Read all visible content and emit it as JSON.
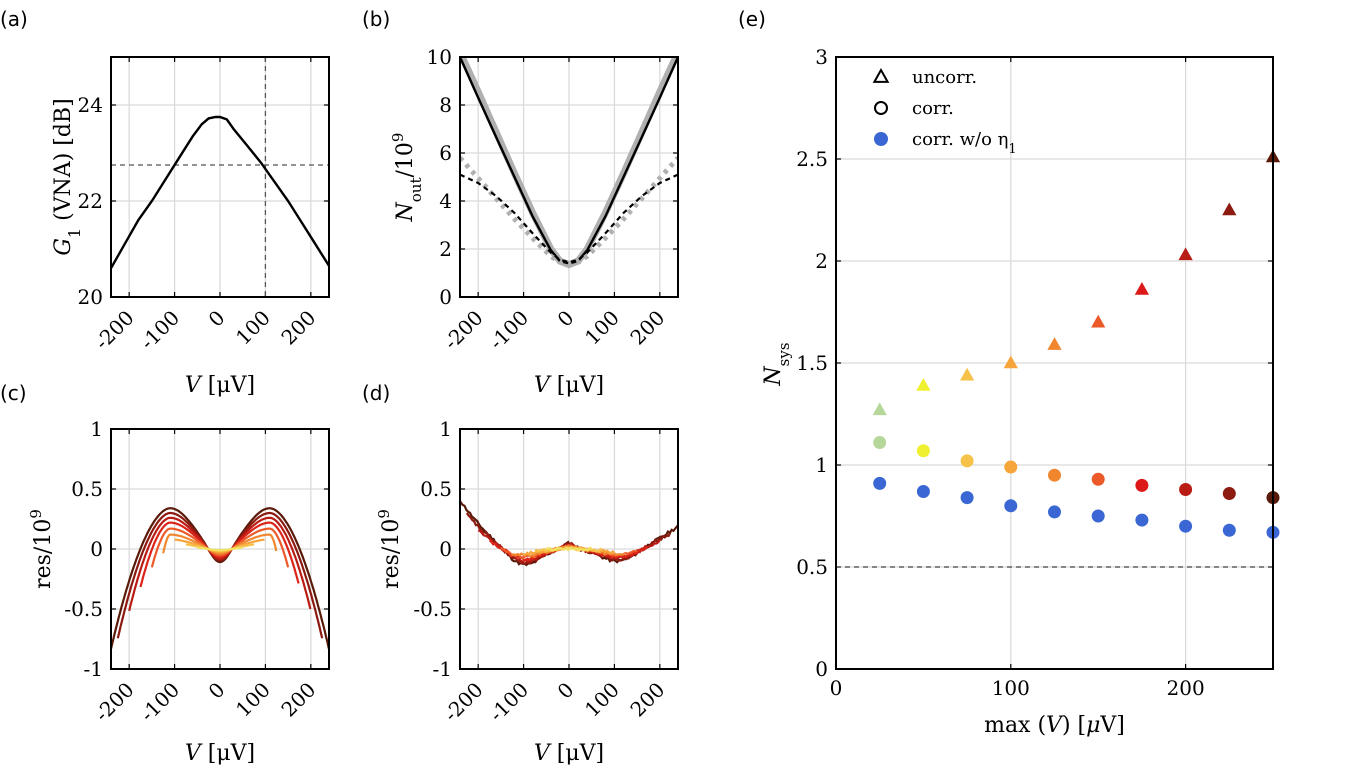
{
  "chart_data": [
    {
      "panel": "(a)",
      "type": "line",
      "xlabel": {
        "var": "V",
        "unit": "[μV]"
      },
      "ylabel": {
        "var": "G",
        "sub": "1",
        "rest": "(VNA) [dB]"
      },
      "xlim": [
        -240,
        240
      ],
      "ylim": [
        20,
        25
      ],
      "xticks": [
        -200,
        -100,
        0,
        100,
        200
      ],
      "yticks": [
        20,
        22,
        24
      ],
      "grid": true,
      "refline_y": 22.75,
      "refline_x": 100,
      "series": [
        {
          "x": [
            -240,
            -210,
            -180,
            -150,
            -120,
            -90,
            -60,
            -40,
            -25,
            -10,
            0,
            15,
            30,
            60,
            90,
            120,
            150,
            180,
            210,
            240
          ],
          "y": [
            20.6,
            21.1,
            21.6,
            22.0,
            22.45,
            22.9,
            23.35,
            23.6,
            23.72,
            23.75,
            23.75,
            23.7,
            23.5,
            23.15,
            22.8,
            22.4,
            22.0,
            21.55,
            21.1,
            20.65
          ],
          "color": "#000000"
        }
      ]
    },
    {
      "panel": "(b)",
      "type": "line",
      "xlabel": {
        "var": "V",
        "unit": "[μV]"
      },
      "ylabel": {
        "var": "N",
        "sub": "out",
        "rest": "/10",
        "sup": "9"
      },
      "xlim": [
        -240,
        240
      ],
      "ylim": [
        0,
        10
      ],
      "xticks": [
        -200,
        -100,
        0,
        100,
        200
      ],
      "yticks": [
        0,
        2,
        4,
        6,
        8,
        10
      ],
      "grid": true,
      "series": [
        {
          "style": "gray-thick",
          "x": [
            -240,
            -200,
            -160,
            -120,
            -80,
            -40,
            -20,
            0,
            20,
            40,
            80,
            120,
            160,
            200,
            240
          ],
          "y": [
            10.2,
            8.55,
            6.85,
            5.15,
            3.5,
            2.0,
            1.5,
            1.35,
            1.5,
            2.0,
            3.5,
            5.15,
            6.85,
            8.55,
            10.2
          ]
        },
        {
          "style": "black-solid",
          "x": [
            -240,
            -200,
            -160,
            -120,
            -80,
            -40,
            -20,
            0,
            20,
            40,
            80,
            120,
            160,
            200,
            240
          ],
          "y": [
            10.0,
            8.3,
            6.65,
            5.0,
            3.35,
            1.95,
            1.5,
            1.4,
            1.5,
            1.95,
            3.35,
            5.0,
            6.65,
            8.3,
            10.0
          ]
        },
        {
          "style": "gray-dotted",
          "x": [
            -240,
            -200,
            -160,
            -120,
            -80,
            -40,
            -20,
            0,
            20,
            40,
            80,
            120,
            160,
            200,
            240
          ],
          "y": [
            5.8,
            4.95,
            4.1,
            3.25,
            2.45,
            1.7,
            1.45,
            1.35,
            1.45,
            1.7,
            2.45,
            3.25,
            4.1,
            4.95,
            5.8
          ]
        },
        {
          "style": "black-dashed",
          "x": [
            -240,
            -200,
            -160,
            -120,
            -80,
            -40,
            -20,
            0,
            20,
            40,
            80,
            120,
            160,
            200,
            240
          ],
          "y": [
            5.1,
            4.75,
            4.2,
            3.5,
            2.65,
            1.85,
            1.55,
            1.45,
            1.55,
            1.85,
            2.65,
            3.5,
            4.2,
            4.75,
            5.1
          ]
        }
      ]
    },
    {
      "panel": "(c)",
      "type": "line",
      "xlabel": {
        "var": "V",
        "unit": "[μV]"
      },
      "ylabel": {
        "text": "res/10",
        "sup": "9"
      },
      "xlim": [
        -240,
        240
      ],
      "ylim": [
        -1,
        1
      ],
      "xticks": [
        -200,
        -100,
        0,
        100,
        200
      ],
      "yticks": [
        -1,
        -0.5,
        0,
        0.5,
        1
      ],
      "ytick_labels": [
        "-1",
        "-0.5",
        "0",
        "0.5",
        "1"
      ],
      "grid": true,
      "series": [
        {
          "max_v": 250,
          "amp": 0.34,
          "color": "#5a1a0a"
        },
        {
          "max_v": 225,
          "amp": 0.3,
          "color": "#8c1a10"
        },
        {
          "max_v": 200,
          "amp": 0.26,
          "color": "#b81c14"
        },
        {
          "max_v": 175,
          "amp": 0.22,
          "color": "#dd2418"
        },
        {
          "max_v": 150,
          "amp": 0.17,
          "color": "#ec5a2a"
        },
        {
          "max_v": 125,
          "amp": 0.12,
          "color": "#f0862e"
        },
        {
          "max_v": 100,
          "amp": 0.08,
          "color": "#f5a53a"
        },
        {
          "max_v": 75,
          "amp": 0.05,
          "color": "#f7c24a"
        },
        {
          "max_v": 50,
          "amp": 0.03,
          "color": "#f2e060"
        }
      ]
    },
    {
      "panel": "(d)",
      "type": "line",
      "xlabel": {
        "var": "V",
        "unit": "[μV]"
      },
      "ylabel": {
        "text": "res/10",
        "sup": "9"
      },
      "xlim": [
        -240,
        240
      ],
      "ylim": [
        -1,
        1
      ],
      "xticks": [
        -200,
        -100,
        0,
        100,
        200
      ],
      "yticks": [
        -1,
        -0.5,
        0,
        0.5,
        1
      ],
      "ytick_labels": [
        "-1",
        "-0.5",
        "0",
        "0.5",
        "1"
      ],
      "grid": true,
      "series": [
        {
          "max_v": 250,
          "color": "#5a1a0a"
        },
        {
          "max_v": 225,
          "color": "#8c1a10"
        },
        {
          "max_v": 200,
          "color": "#b81c14"
        },
        {
          "max_v": 175,
          "color": "#dd2418"
        },
        {
          "max_v": 150,
          "color": "#ec5a2a"
        },
        {
          "max_v": 125,
          "color": "#f0862e"
        },
        {
          "max_v": 100,
          "color": "#f5a53a"
        },
        {
          "max_v": 75,
          "color": "#f7c24a"
        },
        {
          "max_v": 50,
          "color": "#f2e060"
        }
      ]
    },
    {
      "panel": "(e)",
      "type": "scatter",
      "xlabel": {
        "text": "max (V) [μV]"
      },
      "ylabel": {
        "var": "N",
        "sub": "sys"
      },
      "xlim": [
        0,
        250
      ],
      "ylim": [
        0,
        3
      ],
      "xticks": [
        0,
        100,
        200
      ],
      "yticks": [
        0,
        0.5,
        1,
        1.5,
        2,
        2.5,
        3
      ],
      "ytick_labels": [
        "0",
        "0.5",
        "1",
        "1.5",
        "2",
        "2.5",
        "3"
      ],
      "grid": true,
      "refline_y": 0.5,
      "legend_placement": "top-left",
      "legend": [
        {
          "marker": "triangle-open",
          "label": "uncorr."
        },
        {
          "marker": "circle-open",
          "label": "corr."
        },
        {
          "marker": "circle-filled",
          "label": "corr.  w/o η",
          "sub": "1"
        }
      ],
      "x": [
        25,
        50,
        75,
        100,
        125,
        150,
        175,
        200,
        225,
        250
      ],
      "colors": [
        "#b5d89a",
        "#eef030",
        "#f7c24a",
        "#f5a53a",
        "#f0862e",
        "#ec5a2a",
        "#dd1818",
        "#b81c14",
        "#8c1a10",
        "#5a1a0a"
      ],
      "uncorr": [
        1.27,
        1.39,
        1.44,
        1.5,
        1.59,
        1.7,
        1.86,
        2.03,
        2.25,
        2.51
      ],
      "corr": [
        1.11,
        1.07,
        1.02,
        0.99,
        0.95,
        0.93,
        0.9,
        0.88,
        0.86,
        0.84
      ],
      "corr_wo_eta": [
        0.91,
        0.87,
        0.84,
        0.8,
        0.77,
        0.75,
        0.73,
        0.7,
        0.68,
        0.67
      ],
      "corr_wo_eta_color": "#3a67d4"
    }
  ]
}
